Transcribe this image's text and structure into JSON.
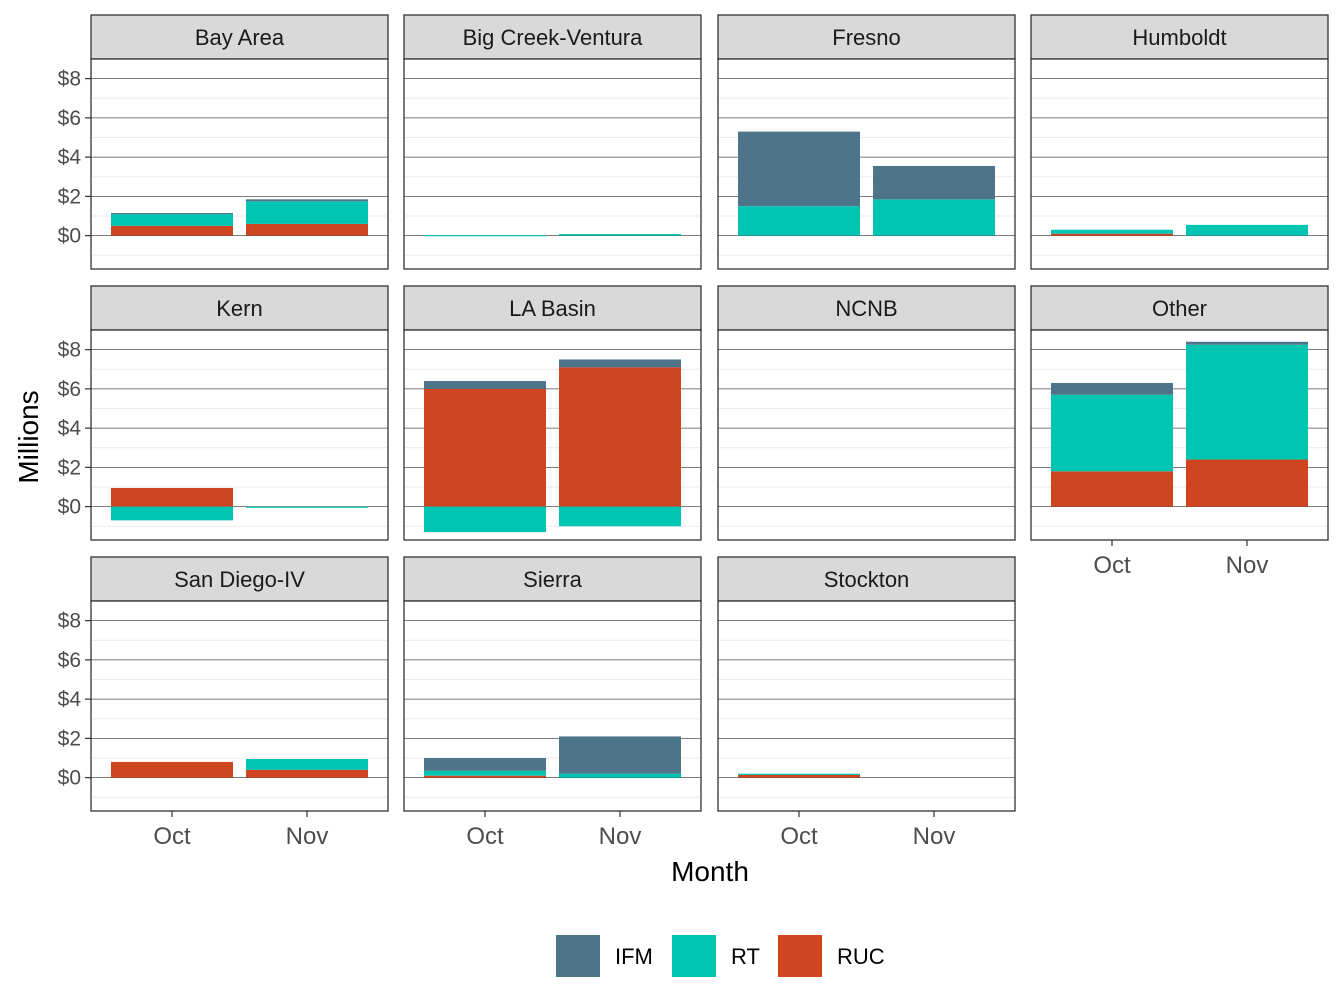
{
  "chart_data": {
    "type": "bar",
    "stacked": true,
    "faceted": true,
    "xlabel": "Month",
    "ylabel": "Millions",
    "categories": [
      "Oct",
      "Nov"
    ],
    "y_ticks": [
      0,
      2,
      4,
      6,
      8
    ],
    "y_tick_labels": [
      "$0",
      "$2",
      "$4",
      "$6",
      "$8"
    ],
    "ylim": [
      -1.7,
      9.0
    ],
    "grid": true,
    "legend_position": "bottom",
    "series_colors": {
      "IFM": "#4e7489",
      "RT": "#00c5b2",
      "RUC": "#cf4520"
    },
    "legend": [
      "IFM",
      "RT",
      "RUC"
    ],
    "panels": [
      {
        "name": "Bay Area",
        "values": {
          "IFM": [
            0.05,
            0.1
          ],
          "RT": [
            0.6,
            1.15
          ],
          "RUC": [
            0.5,
            0.6
          ]
        }
      },
      {
        "name": "Big Creek-Ventura",
        "values": {
          "IFM": [
            0.0,
            0.0
          ],
          "RT": [
            0.03,
            0.08
          ],
          "RUC": [
            0.0,
            0.0
          ]
        }
      },
      {
        "name": "Fresno",
        "values": {
          "IFM": [
            3.8,
            1.7
          ],
          "RT": [
            1.5,
            1.85
          ],
          "RUC": [
            0.0,
            0.0
          ]
        }
      },
      {
        "name": "Humboldt",
        "values": {
          "IFM": [
            0.0,
            0.0
          ],
          "RT": [
            0.2,
            0.55
          ],
          "RUC": [
            0.1,
            0.0
          ]
        }
      },
      {
        "name": "Kern",
        "values": {
          "IFM": [
            0.0,
            0.0
          ],
          "RT": [
            -0.7,
            -0.05
          ],
          "RUC": [
            0.95,
            0.0
          ]
        }
      },
      {
        "name": "LA Basin",
        "values": {
          "IFM": [
            0.4,
            0.4
          ],
          "RT": [
            -1.3,
            -1.0
          ],
          "RUC": [
            6.0,
            7.1
          ]
        }
      },
      {
        "name": "NCNB",
        "values": {
          "IFM": [
            0.0,
            0.0
          ],
          "RT": [
            0.0,
            0.0
          ],
          "RUC": [
            0.0,
            0.0
          ]
        }
      },
      {
        "name": "Other",
        "values": {
          "IFM": [
            0.6,
            0.15
          ],
          "RT": [
            3.9,
            5.85
          ],
          "RUC": [
            1.8,
            2.4
          ]
        }
      },
      {
        "name": "San Diego-IV",
        "values": {
          "IFM": [
            0.0,
            0.0
          ],
          "RT": [
            0.0,
            0.55
          ],
          "RUC": [
            0.8,
            0.4
          ]
        }
      },
      {
        "name": "Sierra",
        "values": {
          "IFM": [
            0.65,
            1.9
          ],
          "RT": [
            0.25,
            0.2
          ],
          "RUC": [
            0.1,
            0.0
          ]
        }
      },
      {
        "name": "Stockton",
        "values": {
          "IFM": [
            0.0,
            0.0
          ],
          "RT": [
            0.05,
            0.0
          ],
          "RUC": [
            0.15,
            0.0
          ]
        }
      }
    ]
  }
}
